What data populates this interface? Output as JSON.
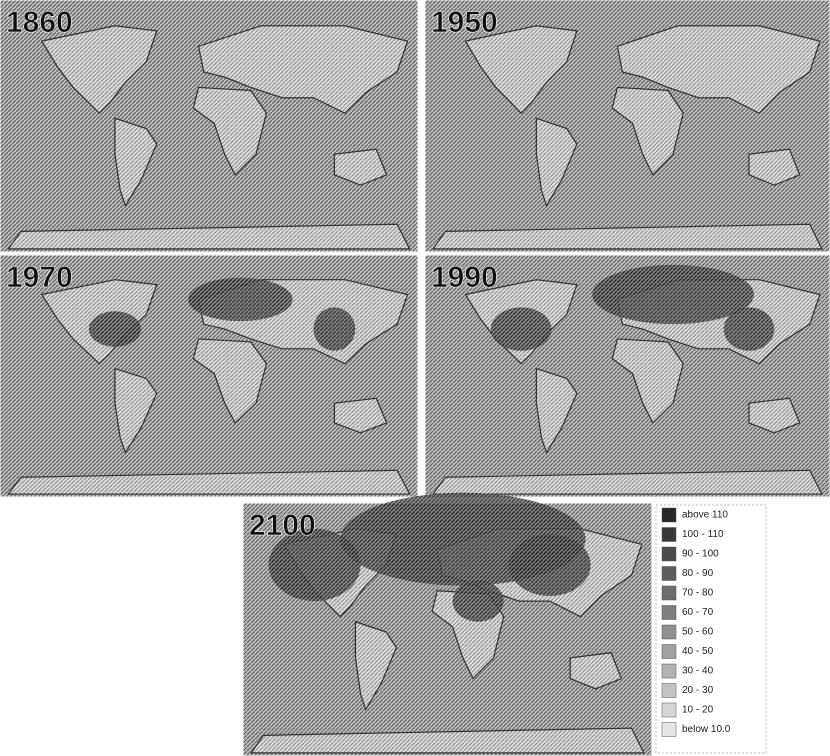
{
  "panels": [
    {
      "year": "1860"
    },
    {
      "year": "1950"
    },
    {
      "year": "1970"
    },
    {
      "year": "1990"
    },
    {
      "year": "2100"
    }
  ],
  "legend": {
    "items": [
      "above 110",
      "100 - 110",
      "90 - 100",
      "80 - 90",
      "70 - 80",
      "60 - 70",
      "50 - 60",
      "40 - 50",
      "30 - 40",
      "20 - 30",
      "10 - 20",
      "below 10.0"
    ]
  }
}
